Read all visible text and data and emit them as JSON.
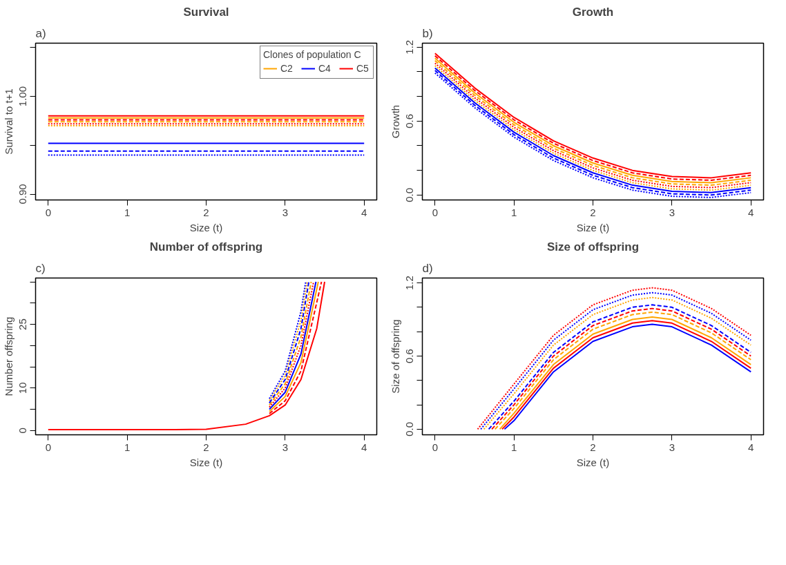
{
  "chart_data": [
    {
      "type": "line",
      "title": "Survival",
      "annotations": [
        "a)"
      ],
      "xlabel": "Size (t)",
      "ylabel": "Survival to t+1",
      "legend_title": "Clones of population C",
      "legend": "top right",
      "xlim": [
        -0.16,
        4.16
      ],
      "xticks": [
        0,
        1,
        2,
        3,
        4
      ],
      "ylim": [
        0.894,
        1.0545
      ],
      "yticks": [
        {
          "value": 0.9,
          "label": "0.90"
        },
        {
          "value": 0.95,
          "label": null
        },
        {
          "value": 1.0,
          "label": "1.00"
        },
        {
          "value": 1.05,
          "label": null
        }
      ],
      "series": [
        {
          "name": "C2",
          "color": "#ffa500",
          "line_style": "solid",
          "x": [
            0,
            4
          ],
          "values": [
            0.978,
            0.978
          ]
        },
        {
          "color": "#ffa500",
          "line_style": "dashed",
          "x": [
            0,
            4
          ],
          "values": [
            0.974,
            0.974
          ]
        },
        {
          "color": "#ffa500",
          "line_style": "dotted",
          "x": [
            0,
            4
          ],
          "values": [
            0.97,
            0.97
          ]
        },
        {
          "name": "C4",
          "color": "#0000ff",
          "line_style": "solid",
          "x": [
            0,
            4
          ],
          "values": [
            0.952,
            0.952
          ]
        },
        {
          "color": "#0000ff",
          "line_style": "dashed",
          "x": [
            0,
            4
          ],
          "values": [
            0.944,
            0.944
          ]
        },
        {
          "color": "#0000ff",
          "line_style": "dotted",
          "x": [
            0,
            4
          ],
          "values": [
            0.94,
            0.94
          ]
        },
        {
          "name": "C5",
          "color": "#ff0000",
          "line_style": "solid",
          "x": [
            0,
            4
          ],
          "values": [
            0.98,
            0.98
          ]
        },
        {
          "color": "#ff0000",
          "line_style": "dashed",
          "x": [
            0,
            4
          ],
          "values": [
            0.976,
            0.976
          ]
        },
        {
          "color": "#ff0000",
          "line_style": "dotted",
          "x": [
            0,
            4
          ],
          "values": [
            0.972,
            0.972
          ]
        }
      ]
    },
    {
      "type": "line",
      "title": "Growth",
      "annotations": [
        "b)"
      ],
      "xlabel": "Size (t)",
      "ylabel": "Growth",
      "xlim": [
        -0.16,
        4.16
      ],
      "xticks": [
        0,
        1,
        2,
        3,
        4
      ],
      "ylim": [
        -0.04,
        1.232
      ],
      "yticks": [
        {
          "value": 0,
          "label": "0.0"
        },
        {
          "value": 0.2,
          "label": null
        },
        {
          "value": 0.4,
          "label": null
        },
        {
          "value": 0.6,
          "label": "0.6"
        },
        {
          "value": 0.8,
          "label": null
        },
        {
          "value": 1.0,
          "label": null
        },
        {
          "value": 1.2,
          "label": "1.2"
        }
      ],
      "x": [
        0,
        0.5,
        1,
        1.5,
        2,
        2.5,
        3,
        3.5,
        4
      ],
      "series": [
        {
          "color": "#ffa500",
          "line_style": "solid",
          "values": [
            1.11,
            0.83,
            0.59,
            0.4,
            0.26,
            0.16,
            0.11,
            0.1,
            0.14
          ]
        },
        {
          "color": "#ffa500",
          "line_style": "dashed",
          "values": [
            1.09,
            0.81,
            0.57,
            0.38,
            0.24,
            0.14,
            0.09,
            0.08,
            0.12
          ]
        },
        {
          "color": "#ffa500",
          "line_style": "dotted",
          "values": [
            1.05,
            0.77,
            0.53,
            0.34,
            0.2,
            0.1,
            0.05,
            0.04,
            0.08
          ]
        },
        {
          "color": "#0000ff",
          "line_style": "solid",
          "values": [
            1.03,
            0.75,
            0.51,
            0.32,
            0.18,
            0.08,
            0.03,
            0.02,
            0.06
          ]
        },
        {
          "color": "#0000ff",
          "line_style": "dashed",
          "values": [
            1.01,
            0.73,
            0.49,
            0.3,
            0.16,
            0.06,
            0.01,
            0.0,
            0.04
          ]
        },
        {
          "color": "#0000ff",
          "line_style": "dotted",
          "values": [
            0.99,
            0.71,
            0.47,
            0.28,
            0.14,
            0.04,
            -0.01,
            -0.02,
            0.02
          ]
        },
        {
          "color": "#ff0000",
          "line_style": "solid",
          "values": [
            1.15,
            0.87,
            0.63,
            0.44,
            0.3,
            0.2,
            0.15,
            0.14,
            0.18
          ]
        },
        {
          "color": "#ff0000",
          "line_style": "dashed",
          "values": [
            1.13,
            0.85,
            0.61,
            0.42,
            0.28,
            0.18,
            0.13,
            0.12,
            0.16
          ]
        },
        {
          "color": "#ff0000",
          "line_style": "dotted",
          "values": [
            1.07,
            0.79,
            0.55,
            0.36,
            0.22,
            0.12,
            0.07,
            0.06,
            0.1
          ]
        }
      ]
    },
    {
      "type": "line",
      "title": "Number of offspring",
      "annotations": [
        "c)"
      ],
      "xlabel": "Size (t)",
      "ylabel": "Number offspring",
      "xlim": [
        -0.16,
        4.16
      ],
      "xticks": [
        0,
        1,
        2,
        3,
        4
      ],
      "ylim": [
        -1,
        35.9
      ],
      "yticks": [
        0,
        {
          "value": 5,
          "label": null
        },
        10,
        {
          "value": 15,
          "label": null
        },
        {
          "value": 20,
          "label": null
        },
        25,
        {
          "value": 30,
          "label": null
        },
        {
          "value": 35,
          "label": null
        }
      ],
      "series": [
        {
          "color": "#ffa500",
          "line_style": "solid",
          "x": [
            2.8,
            3,
            3.2,
            3.42
          ],
          "values": [
            4.5,
            8,
            16,
            35
          ]
        },
        {
          "color": "#ffa500",
          "line_style": "dashed",
          "x": [
            2.8,
            3,
            3.2,
            3.33
          ],
          "values": [
            6,
            11,
            22,
            35
          ]
        },
        {
          "color": "#ffa500",
          "line_style": "dotted",
          "x": [
            2.8,
            3,
            3.2,
            3.28
          ],
          "values": [
            7,
            13,
            26,
            35
          ]
        },
        {
          "color": "#0000ff",
          "line_style": "solid",
          "x": [
            2.8,
            3,
            3.2,
            3.39
          ],
          "values": [
            5,
            9,
            18,
            35
          ]
        },
        {
          "color": "#0000ff",
          "line_style": "dashed",
          "x": [
            2.8,
            3,
            3.2,
            3.3
          ],
          "values": [
            6.5,
            12,
            24,
            35
          ]
        },
        {
          "color": "#0000ff",
          "line_style": "dotted",
          "x": [
            2.8,
            3,
            3.2,
            3.26
          ],
          "values": [
            7.5,
            14,
            28,
            35
          ]
        },
        {
          "color": "#ff0000",
          "line_style": "solid",
          "x": [
            0,
            1,
            1.5,
            2,
            2.5,
            2.8,
            3,
            3.2,
            3.4,
            3.5
          ],
          "values": [
            0.2,
            0.2,
            0.2,
            0.3,
            1.5,
            3.5,
            6,
            12,
            24,
            35
          ]
        },
        {
          "color": "#ff0000",
          "line_style": "dashed",
          "x": [
            2.8,
            3,
            3.2,
            3.46
          ],
          "values": [
            4,
            7,
            14,
            35
          ]
        },
        {
          "color": "#ff0000",
          "line_style": "dotted",
          "x": [
            2.8,
            3,
            3.2,
            3.36
          ],
          "values": [
            5.5,
            10,
            20,
            35
          ]
        }
      ]
    },
    {
      "type": "line",
      "title": "Size of offspring",
      "annotations": [
        "d)"
      ],
      "xlabel": "Size (t)",
      "ylabel": "Size of offspring",
      "xlim": [
        -0.16,
        4.16
      ],
      "xticks": [
        0,
        1,
        2,
        3,
        4
      ],
      "ylim": [
        -0.046,
        1.24
      ],
      "yticks": [
        {
          "value": 0,
          "label": "0.0"
        },
        {
          "value": 0.2,
          "label": null
        },
        {
          "value": 0.4,
          "label": null
        },
        {
          "value": 0.6,
          "label": "0.6"
        },
        {
          "value": 0.8,
          "label": null
        },
        {
          "value": 1.0,
          "label": null
        },
        {
          "value": 1.2,
          "label": "1.2"
        }
      ],
      "series": [
        {
          "color": "#ffa500",
          "line_style": "solid",
          "x": [
            0.82,
            1,
            1.5,
            2,
            2.5,
            2.75,
            3,
            3.5,
            4
          ],
          "values": [
            0,
            0.13,
            0.53,
            0.78,
            0.9,
            0.92,
            0.9,
            0.75,
            0.53
          ]
        },
        {
          "color": "#ffa500",
          "line_style": "dashed",
          "x": [
            0.76,
            1,
            1.5,
            2,
            2.5,
            2.75,
            3,
            3.5,
            4
          ],
          "values": [
            0,
            0.17,
            0.57,
            0.82,
            0.94,
            0.96,
            0.94,
            0.79,
            0.57
          ]
        },
        {
          "color": "#ffa500",
          "line_style": "dotted",
          "x": [
            0.62,
            1,
            1.5,
            2,
            2.5,
            2.75,
            3,
            3.5,
            4
          ],
          "values": [
            0,
            0.29,
            0.69,
            0.94,
            1.06,
            1.08,
            1.06,
            0.91,
            0.69
          ]
        },
        {
          "color": "#0000ff",
          "line_style": "solid",
          "x": [
            0.88,
            1,
            1.5,
            2,
            2.5,
            2.75,
            3,
            3.5,
            4
          ],
          "values": [
            0,
            0.07,
            0.47,
            0.72,
            0.84,
            0.86,
            0.84,
            0.69,
            0.47
          ]
        },
        {
          "color": "#0000ff",
          "line_style": "dashed",
          "x": [
            0.68,
            1,
            1.5,
            2,
            2.5,
            2.75,
            3,
            3.5,
            4
          ],
          "values": [
            0,
            0.23,
            0.63,
            0.88,
            1.0,
            1.02,
            1.0,
            0.85,
            0.63
          ]
        },
        {
          "color": "#0000ff",
          "line_style": "dotted",
          "x": [
            0.58,
            1,
            1.5,
            2,
            2.5,
            2.75,
            3,
            3.5,
            4
          ],
          "values": [
            0,
            0.33,
            0.73,
            0.98,
            1.1,
            1.12,
            1.1,
            0.95,
            0.73
          ]
        },
        {
          "color": "#ff0000",
          "line_style": "solid",
          "x": [
            0.85,
            1,
            1.5,
            2,
            2.5,
            2.75,
            3,
            3.5,
            4
          ],
          "values": [
            0,
            0.1,
            0.5,
            0.75,
            0.87,
            0.89,
            0.87,
            0.72,
            0.5
          ]
        },
        {
          "color": "#ff0000",
          "line_style": "dashed",
          "x": [
            0.72,
            1,
            1.5,
            2,
            2.5,
            2.75,
            3,
            3.5,
            4
          ],
          "values": [
            0,
            0.2,
            0.6,
            0.85,
            0.97,
            0.99,
            0.97,
            0.82,
            0.6
          ]
        },
        {
          "color": "#ff0000",
          "line_style": "dotted",
          "x": [
            0.54,
            1,
            1.5,
            2,
            2.5,
            2.75,
            3,
            3.5,
            4
          ],
          "values": [
            0,
            0.37,
            0.77,
            1.02,
            1.14,
            1.16,
            1.14,
            0.99,
            0.77
          ]
        }
      ]
    }
  ]
}
